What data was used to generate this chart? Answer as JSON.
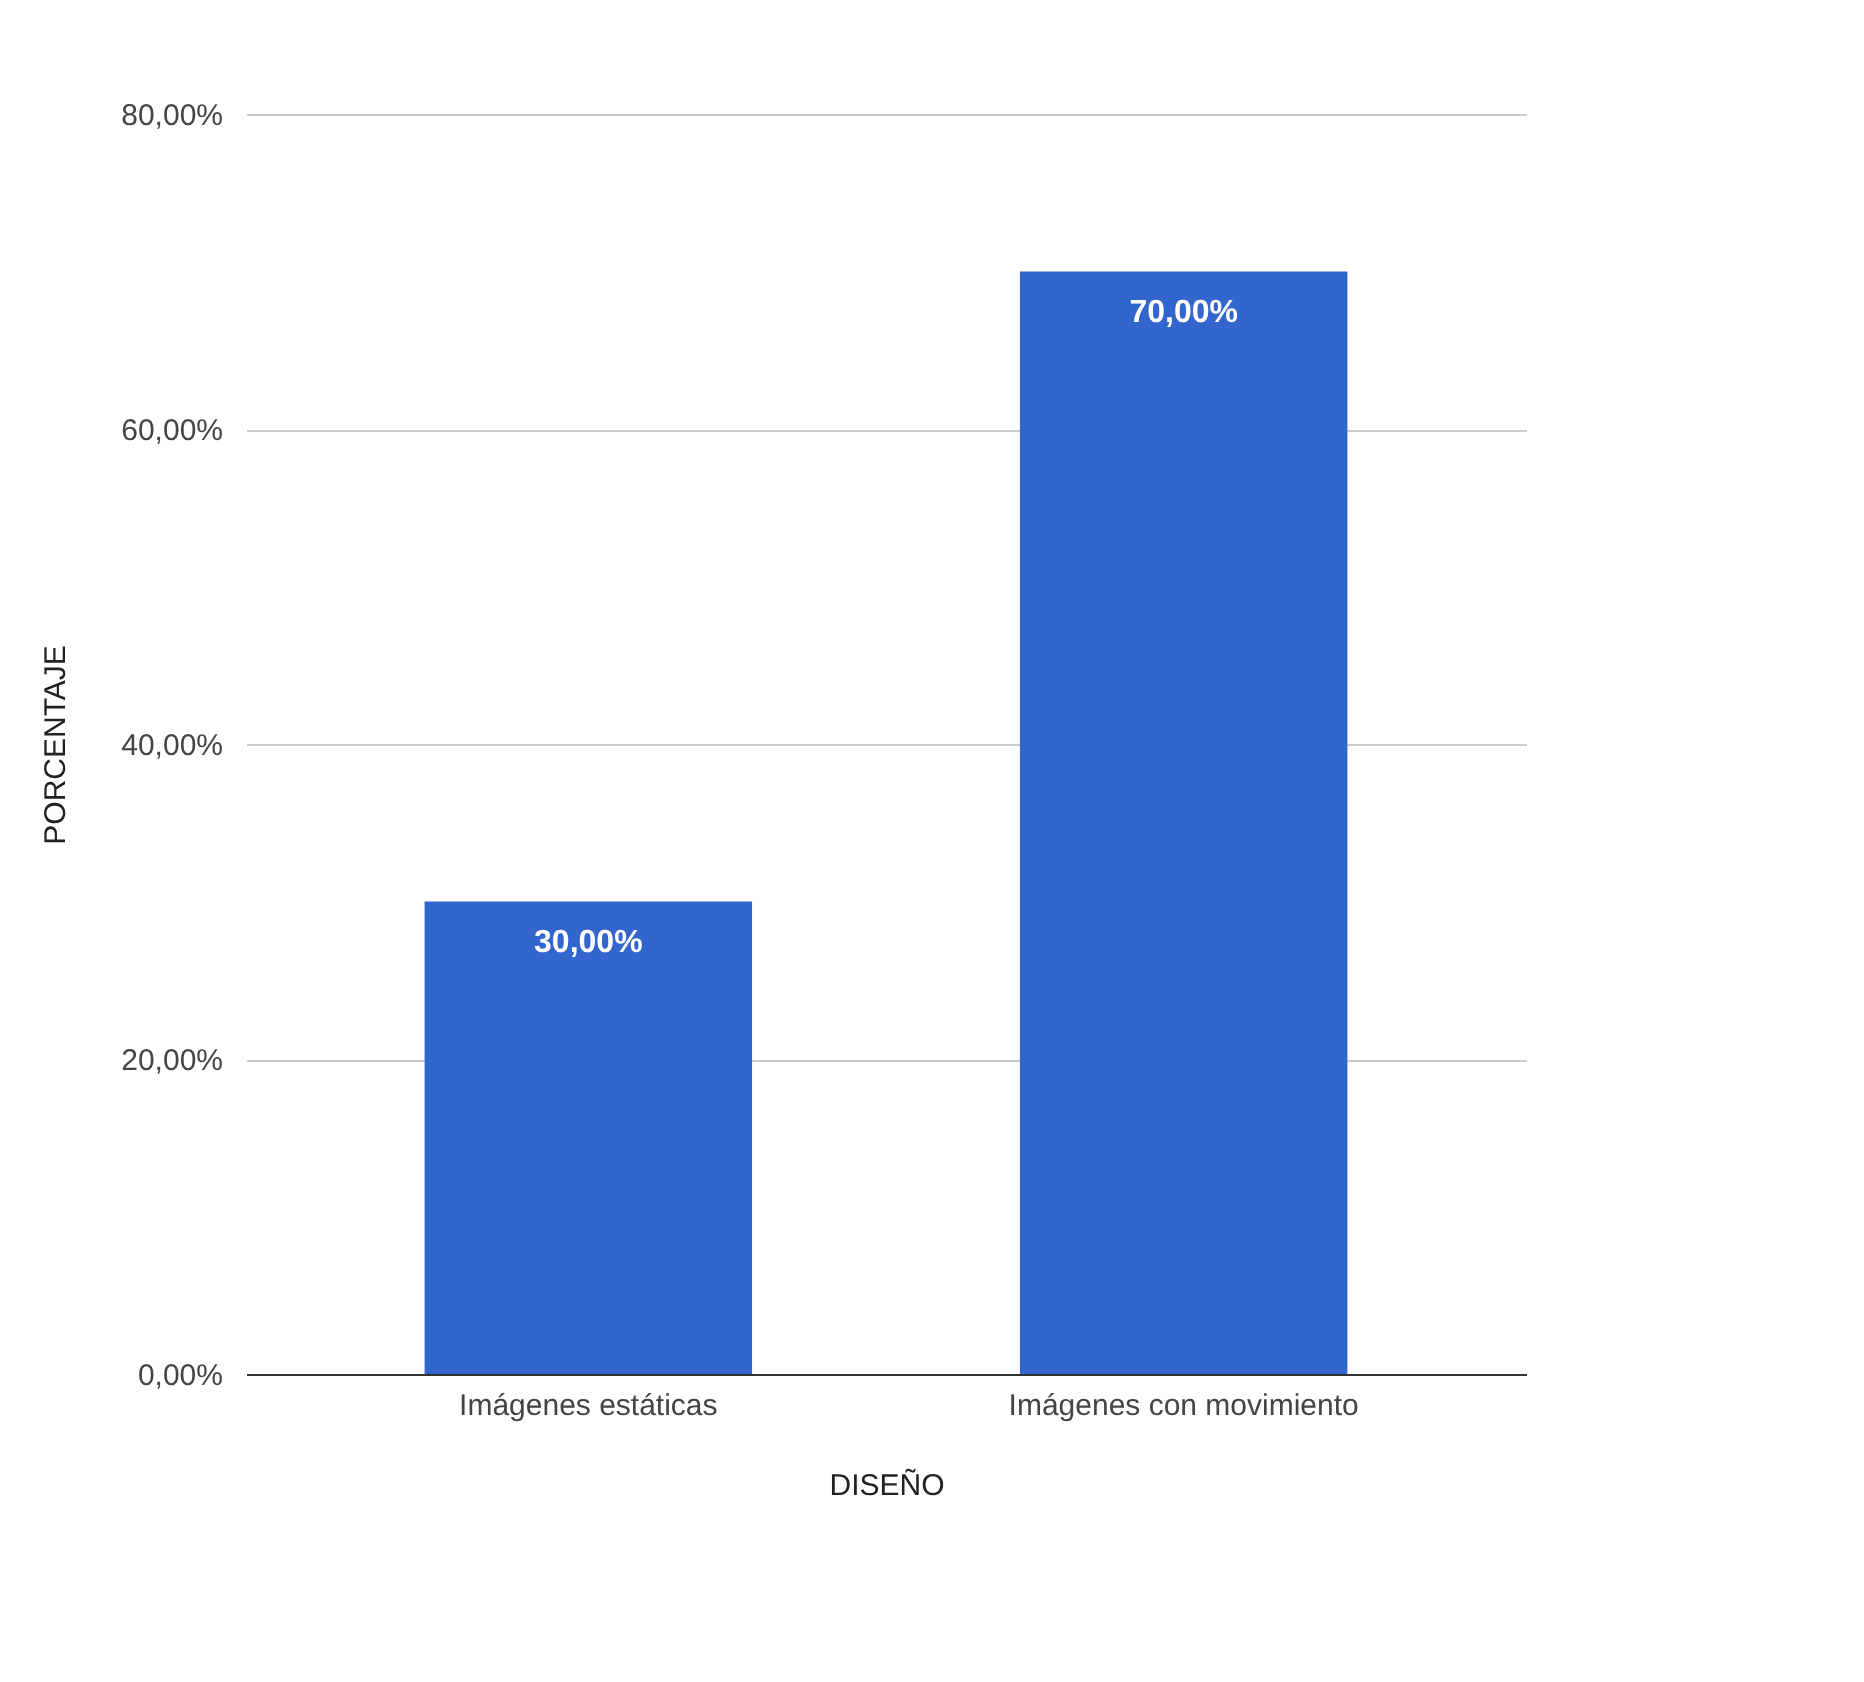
{
  "chart_data": {
    "type": "bar",
    "xlabel": "DISEÑO",
    "ylabel": "PORCENTAJE",
    "categories": [
      "Imágenes estáticas",
      "Imágenes con movimiento"
    ],
    "values": [
      30,
      70
    ],
    "color": "#3366cc",
    "value_labels": [
      "30,00%",
      "70,00%"
    ],
    "ylim": [
      0,
      80
    ],
    "yticks": [
      {
        "value": 0,
        "label": "0,00%"
      },
      {
        "value": 20,
        "label": "20,00%"
      },
      {
        "value": 40,
        "label": "40,00%"
      },
      {
        "value": 60,
        "label": "60,00%"
      },
      {
        "value": 80,
        "label": "80,00%"
      }
    ],
    "grid": "y"
  }
}
